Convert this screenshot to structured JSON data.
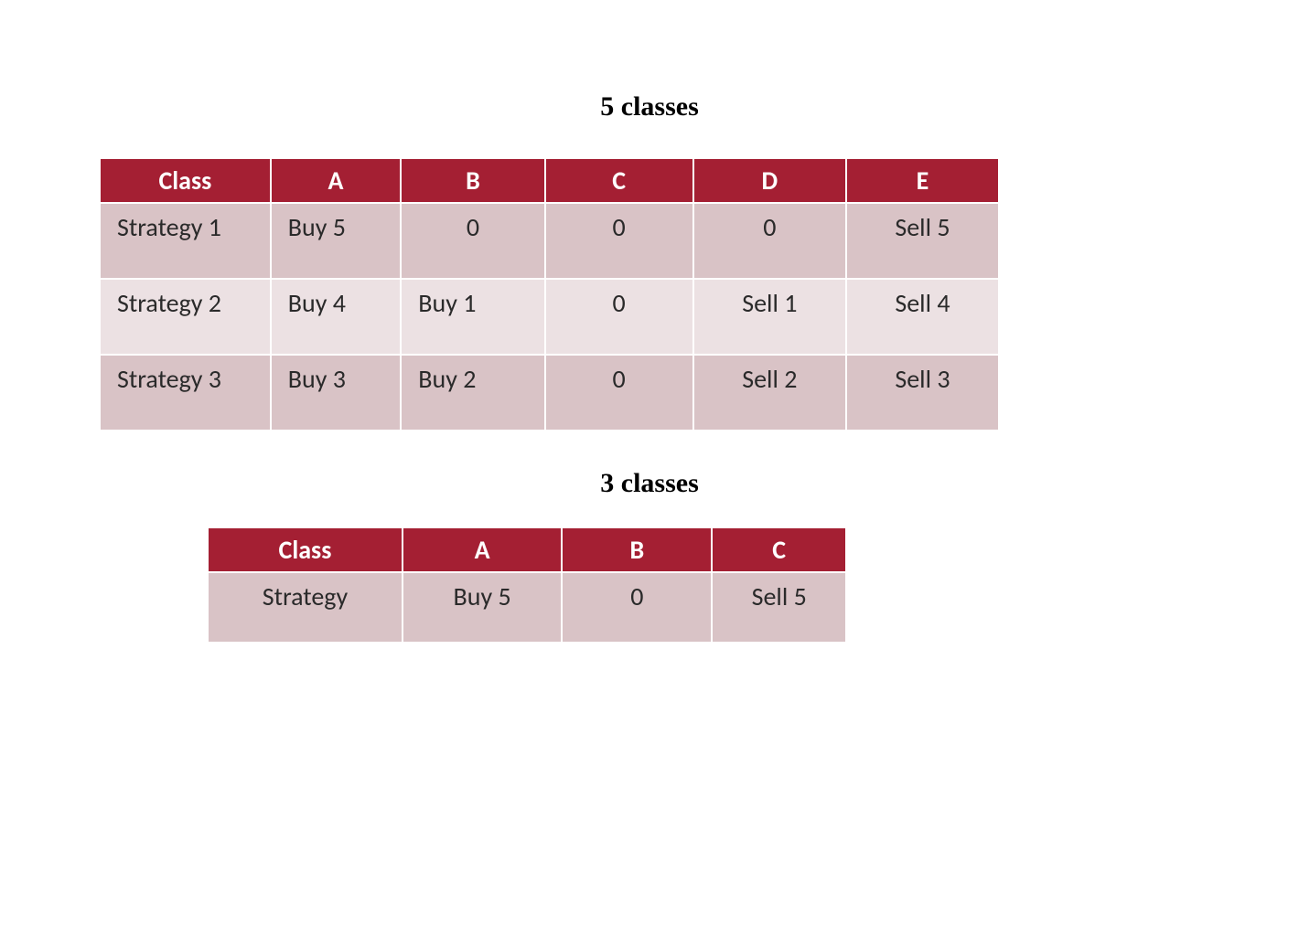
{
  "title1": "5 classes",
  "title2": "3 classes",
  "table1": {
    "type": "table",
    "header_bg_color": "#a41f33",
    "header_text_color": "#ffffff",
    "row_odd_bg": "#d9c3c6",
    "row_even_bg": "#ece1e3",
    "border_color": "#ffffff",
    "text_color": "#2a2a2a",
    "header_fontsize": 28,
    "cell_fontsize": 28,
    "columns": [
      "Class",
      "A",
      "B",
      "C",
      "D",
      "E"
    ],
    "rows": [
      [
        "Strategy 1",
        "Buy 5",
        "0",
        "0",
        "0",
        "Sell 5"
      ],
      [
        "Strategy 2",
        "Buy 4",
        "Buy 1",
        "0",
        "Sell 1",
        "Sell 4"
      ],
      [
        "Strategy 3",
        "Buy 3",
        "Buy 2",
        "0",
        "Sell 2",
        "Sell 3"
      ]
    ]
  },
  "table2": {
    "type": "table",
    "header_bg_color": "#a41f33",
    "header_text_color": "#ffffff",
    "row_odd_bg": "#d9c3c6",
    "row_even_bg": "#ece1e3",
    "border_color": "#ffffff",
    "text_color": "#2a2a2a",
    "header_fontsize": 28,
    "cell_fontsize": 28,
    "columns": [
      "Class",
      "A",
      "B",
      "C"
    ],
    "rows": [
      [
        "Strategy",
        "Buy 5",
        "0",
        "Sell 5"
      ]
    ]
  }
}
